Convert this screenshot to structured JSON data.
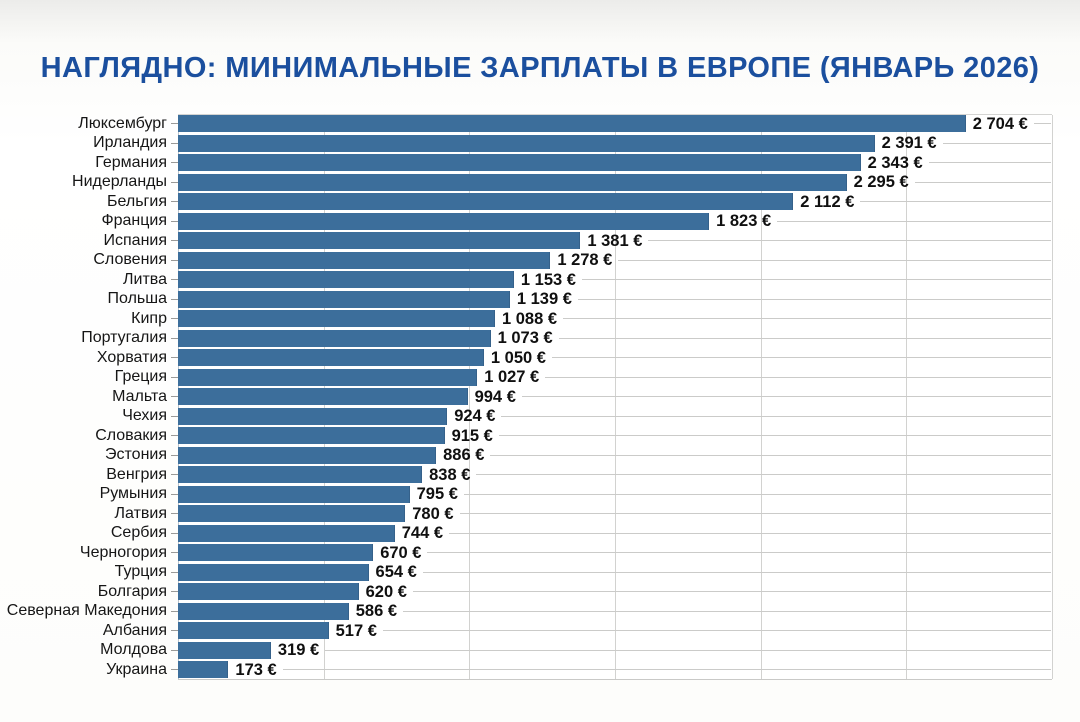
{
  "title": "НАГЛЯДНО: МИНИМАЛЬНЫЕ ЗАРПЛАТЫ В ЕВРОПЕ (ЯНВАРЬ 2026)",
  "colors": {
    "bar": "#3c6e9b",
    "title": "#1b4f9e",
    "grid": "#d2d2d0",
    "value_text": "#101010",
    "label_text": "#161616"
  },
  "chart_data": {
    "type": "bar",
    "orientation": "horizontal",
    "title": "НАГЛЯДНО: МИНИМАЛЬНЫЕ ЗАРПЛАТЫ В ЕВРОПЕ (ЯНВАРЬ 2026)",
    "unit": "€",
    "xlabel": "",
    "ylabel": "",
    "xlim": [
      0,
      3000
    ],
    "grid": true,
    "gridline_step": 500,
    "legend": false,
    "categories": [
      "Люксембург",
      "Ирландия",
      "Германия",
      "Нидерланды",
      "Бельгия",
      "Франция",
      "Испания",
      "Словения",
      "Литва",
      "Польша",
      "Кипр",
      "Португалия",
      "Хорватия",
      "Греция",
      "Мальта",
      "Чехия",
      "Словакия",
      "Эстония",
      "Венгрия",
      "Румыния",
      "Латвия",
      "Сербия",
      "Черногория",
      "Турция",
      "Болгария",
      "Северная Македония",
      "Албания",
      "Молдова",
      "Украина"
    ],
    "values": [
      2704,
      2391,
      2343,
      2295,
      2112,
      1823,
      1381,
      1278,
      1153,
      1139,
      1088,
      1073,
      1050,
      1027,
      994,
      924,
      915,
      886,
      838,
      795,
      780,
      744,
      670,
      654,
      620,
      586,
      517,
      319,
      173
    ],
    "value_labels": [
      "2 704 €",
      "2 391 €",
      "2 343 €",
      "2 295 €",
      "2 112 €",
      "1 823 €",
      "1 381 €",
      "1 278 €",
      "1 153 €",
      "1 139 €",
      "1 088 €",
      "1 073 €",
      "1 050 €",
      "1 027 €",
      "994 €",
      "924 €",
      "915 €",
      "886 €",
      "838 €",
      "795 €",
      "780 €",
      "744 €",
      "670 €",
      "654 €",
      "620 €",
      "586 €",
      "517 €",
      "319 €",
      "173 €"
    ]
  }
}
